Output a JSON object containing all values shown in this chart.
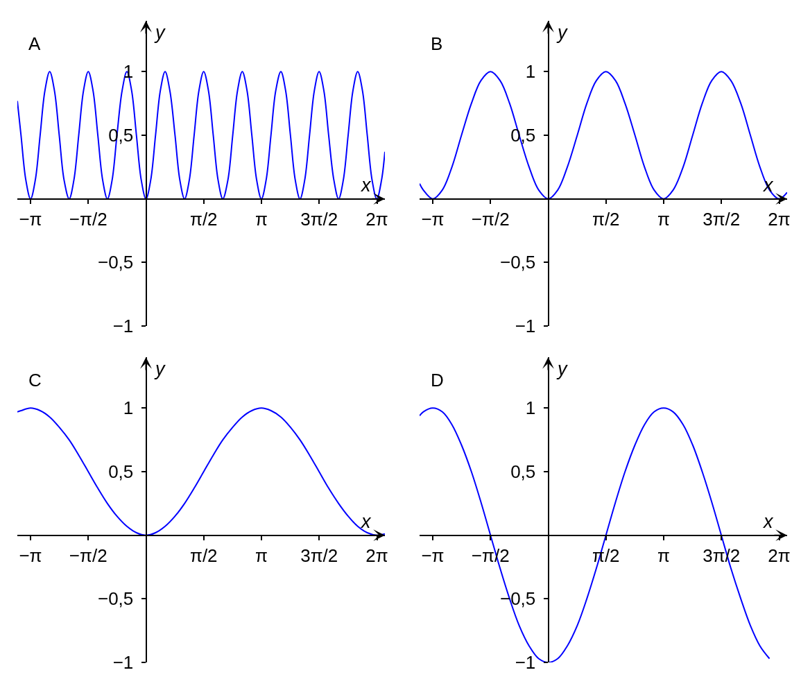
{
  "chart_data": [
    {
      "type": "line",
      "title": "A",
      "xlabel": "x",
      "ylabel": "y",
      "color": "#0000ff",
      "x": [
        -3.5,
        -3.4,
        -3.27,
        -3.14,
        -3.01,
        -2.88,
        -2.75,
        -2.62,
        -2.49,
        -2.36,
        -2.23,
        -2.09,
        -1.96,
        -1.83,
        -1.7,
        -1.57,
        -1.44,
        -1.31,
        -1.18,
        -1.05,
        -0.92,
        -0.79,
        -0.65,
        -0.52,
        -0.39,
        -0.26,
        -0.13,
        0,
        0.13,
        0.26,
        0.39,
        0.52,
        0.65,
        0.79,
        0.92,
        1.05,
        1.18,
        1.31,
        1.44,
        1.57,
        1.7,
        1.83,
        1.96,
        2.09,
        2.23,
        2.36,
        2.49,
        2.62,
        2.75,
        2.88,
        3.01,
        3.14,
        3.27,
        3.4,
        3.53,
        3.67,
        3.8,
        3.93,
        4.06,
        4.19,
        4.32,
        4.45,
        4.58,
        4.71,
        4.84,
        4.97,
        5.11,
        5.24,
        5.37,
        5.5,
        5.63,
        5.76,
        5.89,
        6.02,
        6.15,
        6.28,
        6.41,
        6.5
      ],
      "values": [
        0.77,
        0.5,
        0.15,
        0,
        0.15,
        0.5,
        0.85,
        1,
        0.85,
        0.5,
        0.15,
        0,
        0.15,
        0.5,
        0.85,
        1,
        0.85,
        0.5,
        0.15,
        0,
        0.15,
        0.5,
        0.85,
        1,
        0.85,
        0.5,
        0.15,
        0,
        0.15,
        0.5,
        0.85,
        1,
        0.85,
        0.5,
        0.15,
        0,
        0.15,
        0.5,
        0.85,
        1,
        0.85,
        0.5,
        0.15,
        0,
        0.15,
        0.5,
        0.85,
        1,
        0.85,
        0.5,
        0.15,
        0,
        0.15,
        0.5,
        0.85,
        1,
        0.85,
        0.5,
        0.15,
        0,
        0.15,
        0.5,
        0.85,
        1,
        0.85,
        0.5,
        0.15,
        0,
        0.15,
        0.5,
        0.85,
        1,
        0.85,
        0.5,
        0.15,
        0,
        0.15,
        0.37
      ],
      "xlim": [
        -3.5,
        6.5
      ],
      "ylim": [
        -1,
        1.4
      ],
      "xticks": [
        {
          "value": -3.1416,
          "label": "−π"
        },
        {
          "value": -1.5708,
          "label": "−π/2"
        },
        {
          "value": 1.5708,
          "label": "π/2"
        },
        {
          "value": 3.1416,
          "label": "π"
        },
        {
          "value": 4.7124,
          "label": "3π/2"
        },
        {
          "value": 6.2832,
          "label": "2π"
        }
      ],
      "yticks": [
        {
          "value": -1,
          "label": "−1"
        },
        {
          "value": -0.5,
          "label": "−0,5"
        },
        {
          "value": 0.5,
          "label": "0,5"
        },
        {
          "value": 1,
          "label": "1"
        }
      ]
    },
    {
      "type": "line",
      "title": "B",
      "xlabel": "x",
      "ylabel": "y",
      "color": "#0000ff",
      "x": [
        -3.5,
        -3.4,
        -3.14,
        -2.88,
        -2.62,
        -2.36,
        -2.09,
        -1.83,
        -1.57,
        -1.31,
        -1.05,
        -0.79,
        -0.52,
        -0.26,
        0,
        0.26,
        0.52,
        0.79,
        1.05,
        1.31,
        1.57,
        1.83,
        2.09,
        2.36,
        2.62,
        2.88,
        3.14,
        3.4,
        3.67,
        3.93,
        4.19,
        4.45,
        4.71,
        4.97,
        5.24,
        5.5,
        5.76,
        6.02,
        6.28,
        6.5
      ],
      "values": [
        0.12,
        0.07,
        0,
        0.07,
        0.25,
        0.5,
        0.75,
        0.93,
        1,
        0.93,
        0.75,
        0.5,
        0.25,
        0.07,
        0,
        0.07,
        0.25,
        0.5,
        0.75,
        0.93,
        1,
        0.93,
        0.75,
        0.5,
        0.25,
        0.07,
        0,
        0.07,
        0.25,
        0.5,
        0.75,
        0.93,
        1,
        0.93,
        0.75,
        0.5,
        0.25,
        0.07,
        0,
        0.05
      ],
      "xlim": [
        -3.5,
        6.5
      ],
      "ylim": [
        -1,
        1.4
      ],
      "xticks": [
        {
          "value": -3.1416,
          "label": "−π"
        },
        {
          "value": -1.5708,
          "label": "−π/2"
        },
        {
          "value": 1.5708,
          "label": "π/2"
        },
        {
          "value": 3.1416,
          "label": "π"
        },
        {
          "value": 4.7124,
          "label": "3π/2"
        },
        {
          "value": 6.2832,
          "label": "2π"
        }
      ],
      "yticks": [
        {
          "value": -1,
          "label": "−1"
        },
        {
          "value": -0.5,
          "label": "−0,5"
        },
        {
          "value": 0.5,
          "label": "0,5"
        },
        {
          "value": 1,
          "label": "1"
        }
      ]
    },
    {
      "type": "line",
      "title": "C",
      "xlabel": "x",
      "ylabel": "y",
      "color": "#0000ff",
      "x": [
        -3.5,
        -3.4,
        -3.14,
        -2.88,
        -2.62,
        -2.36,
        -2.09,
        -1.83,
        -1.57,
        -1.31,
        -1.05,
        -0.79,
        -0.52,
        -0.26,
        0,
        0.26,
        0.52,
        0.79,
        1.05,
        1.31,
        1.57,
        1.83,
        2.09,
        2.36,
        2.62,
        2.88,
        3.14,
        3.4,
        3.67,
        3.93,
        4.19,
        4.45,
        4.71,
        4.97,
        5.24,
        5.5,
        5.76,
        6.02,
        6.28,
        6.5
      ],
      "values": [
        0.97,
        0.98,
        1,
        0.98,
        0.93,
        0.85,
        0.75,
        0.63,
        0.5,
        0.37,
        0.25,
        0.15,
        0.07,
        0.02,
        0,
        0.02,
        0.07,
        0.15,
        0.25,
        0.37,
        0.5,
        0.63,
        0.75,
        0.85,
        0.93,
        0.98,
        1,
        0.98,
        0.93,
        0.85,
        0.75,
        0.63,
        0.5,
        0.37,
        0.25,
        0.15,
        0.07,
        0.02,
        0,
        0.01
      ],
      "xlim": [
        -3.5,
        6.5
      ],
      "ylim": [
        -1,
        1.4
      ],
      "xticks": [
        {
          "value": -3.1416,
          "label": "−π"
        },
        {
          "value": -1.5708,
          "label": "−π/2"
        },
        {
          "value": 1.5708,
          "label": "π/2"
        },
        {
          "value": 3.1416,
          "label": "π"
        },
        {
          "value": 4.7124,
          "label": "3π/2"
        },
        {
          "value": 6.2832,
          "label": "2π"
        }
      ],
      "yticks": [
        {
          "value": -1,
          "label": "−1"
        },
        {
          "value": -0.5,
          "label": "−0,5"
        },
        {
          "value": 0.5,
          "label": "0,5"
        },
        {
          "value": 1,
          "label": "1"
        }
      ]
    },
    {
      "type": "line",
      "title": "D",
      "xlabel": "x",
      "ylabel": "y",
      "color": "#0000ff",
      "x": [
        -3.5,
        -3.4,
        -3.14,
        -2.88,
        -2.62,
        -2.36,
        -2.09,
        -1.83,
        -1.57,
        -1.31,
        -1.05,
        -0.79,
        -0.52,
        -0.26,
        0,
        0.26,
        0.52,
        0.79,
        1.05,
        1.31,
        1.57,
        1.83,
        2.09,
        2.36,
        2.62,
        2.88,
        3.14,
        3.4,
        3.67,
        3.93,
        4.19,
        4.45,
        4.71,
        4.97,
        5.24,
        5.5,
        5.76,
        6.02
      ],
      "values": [
        0.94,
        0.97,
        1,
        0.97,
        0.87,
        0.71,
        0.5,
        0.26,
        0,
        -0.26,
        -0.5,
        -0.71,
        -0.87,
        -0.97,
        -1,
        -0.97,
        -0.87,
        -0.71,
        -0.5,
        -0.26,
        0,
        0.26,
        0.5,
        0.71,
        0.87,
        0.97,
        1,
        0.97,
        0.87,
        0.71,
        0.5,
        0.26,
        0,
        -0.26,
        -0.5,
        -0.71,
        -0.87,
        -0.97
      ],
      "xlim": [
        -3.5,
        6.5
      ],
      "ylim": [
        -1,
        1.4
      ],
      "xticks": [
        {
          "value": -3.1416,
          "label": "−π"
        },
        {
          "value": -1.5708,
          "label": "−π/2"
        },
        {
          "value": 1.5708,
          "label": "π/2"
        },
        {
          "value": 3.1416,
          "label": "π"
        },
        {
          "value": 4.7124,
          "label": "3π/2"
        },
        {
          "value": 6.2832,
          "label": "2π"
        }
      ],
      "yticks": [
        {
          "value": -1,
          "label": "−1"
        },
        {
          "value": -0.5,
          "label": "−0,5"
        },
        {
          "value": 0.5,
          "label": "0,5"
        },
        {
          "value": 1,
          "label": "1"
        }
      ]
    }
  ]
}
